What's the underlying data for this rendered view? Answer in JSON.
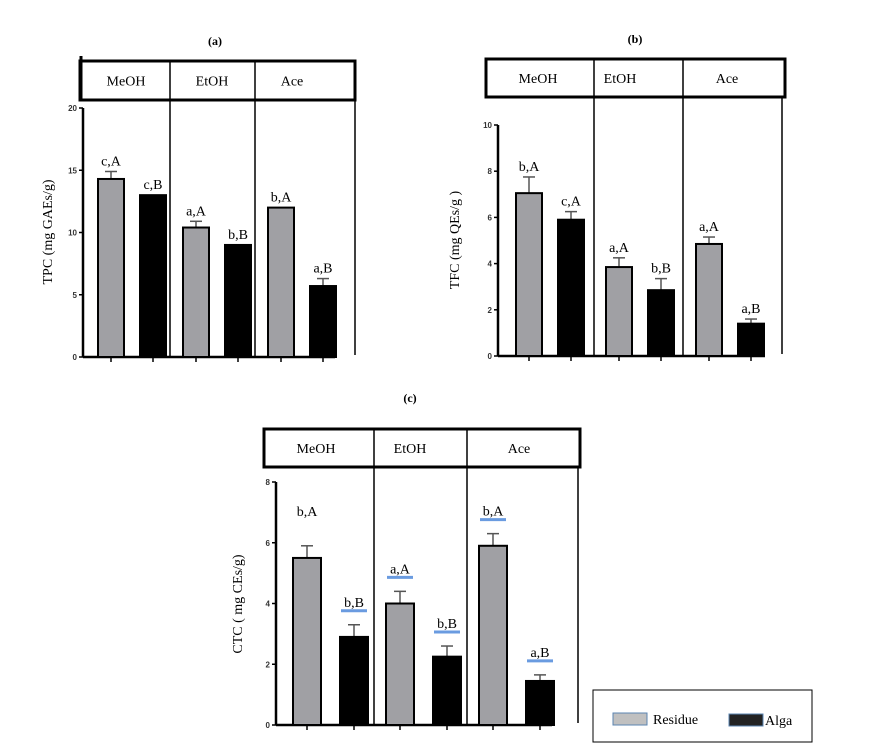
{
  "chart_data": [
    {
      "type": "bar",
      "panel_label": "(a)",
      "categories": [
        "MeOH",
        "EtOH",
        "Ace"
      ],
      "ylabel": "TPC (mg GAEs/g)",
      "ylim": [
        0,
        20
      ],
      "yticks": [
        0,
        5,
        10,
        15,
        20
      ],
      "series": [
        {
          "name": "Residue",
          "values": [
            14.3,
            10.4,
            12.0
          ],
          "errors": [
            0.6,
            0.5,
            0.0
          ],
          "labels": [
            "c,A",
            "a,A",
            "b,A"
          ]
        },
        {
          "name": "Alga",
          "values": [
            13.0,
            9.0,
            5.7
          ],
          "errors": [
            0.0,
            0.0,
            0.6
          ],
          "labels": [
            "c,B",
            "b,B",
            "a,B"
          ]
        }
      ]
    },
    {
      "type": "bar",
      "panel_label": "(b)",
      "categories": [
        "MeOH",
        "EtOH",
        "Ace"
      ],
      "ylabel": "TFC (mg QEs/g )",
      "ylim": [
        0,
        10
      ],
      "yticks": [
        0,
        2,
        4,
        6,
        8,
        10
      ],
      "series": [
        {
          "name": "Residue",
          "values": [
            7.05,
            3.85,
            4.85
          ],
          "errors": [
            0.7,
            0.4,
            0.3
          ],
          "labels": [
            "b,A",
            "a,A",
            "a,A"
          ]
        },
        {
          "name": "Alga",
          "values": [
            5.9,
            2.85,
            1.4
          ],
          "errors": [
            0.35,
            0.5,
            0.2
          ],
          "labels": [
            "c,A",
            "b,B",
            "a,B"
          ]
        }
      ]
    },
    {
      "type": "bar",
      "panel_label": "(c)",
      "categories": [
        "MeOH",
        "EtOH",
        "Ace"
      ],
      "ylabel": "CTC ( mg CEs/g)",
      "ylim": [
        0,
        8
      ],
      "yticks": [
        0,
        2,
        4,
        6,
        8
      ],
      "series": [
        {
          "name": "Residue",
          "values": [
            5.5,
            4.0,
            5.9
          ],
          "errors": [
            0.4,
            0.4,
            0.4
          ],
          "labels": [
            "b,A",
            "a,A",
            "b,A"
          ],
          "underlined": [
            false,
            true,
            true
          ]
        },
        {
          "name": "Alga",
          "values": [
            2.9,
            2.25,
            1.45
          ],
          "errors": [
            0.4,
            0.35,
            0.2
          ],
          "labels": [
            "b,B",
            "b,B",
            "a,B"
          ],
          "underlined": [
            true,
            true,
            true
          ]
        }
      ]
    }
  ],
  "legend": {
    "items": [
      {
        "label": "Residue",
        "color": "#a0a0a4"
      },
      {
        "label": "Alga",
        "color": "#000000"
      }
    ]
  },
  "colors": {
    "residue": "#a0a0a4",
    "alga": "#000000",
    "underline": "#6a9be0"
  }
}
